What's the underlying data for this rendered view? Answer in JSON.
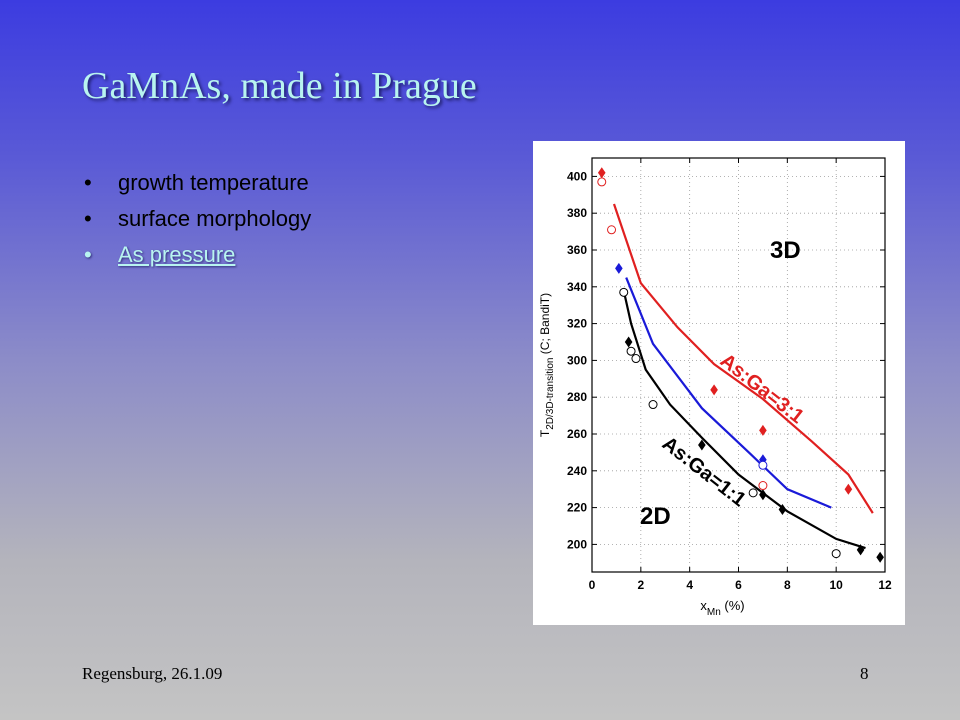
{
  "slide": {
    "title": "GaMnAs, made in Prague",
    "bullets": [
      "growth temperature",
      "surface morphology",
      "As pressure"
    ],
    "bullet_glyph": "•",
    "footer_left": "Regensburg, 26.1.09",
    "footer_right": "8",
    "colors": {
      "title": "#b8f4f0",
      "link": "#b8f4f0"
    }
  },
  "chart_data": {
    "type": "scatter",
    "xlim": [
      0,
      12
    ],
    "ylim": [
      185,
      410
    ],
    "xticks": [
      0,
      2,
      4,
      6,
      8,
      10,
      12
    ],
    "yticks": [
      200,
      220,
      240,
      260,
      280,
      300,
      320,
      340,
      360,
      380,
      400
    ],
    "grid": true,
    "xlabel": {
      "main": "x",
      "sub": "Mn",
      "unit": "(%)"
    },
    "ylabel": {
      "main": "T",
      "sub": "2D/3D-transition",
      "unit": "(C; BandiT)"
    },
    "annotations": [
      "3D",
      "2D",
      "As:Ga=3:1",
      "As:Ga=1:1"
    ],
    "series": [
      {
        "color": "#e02020",
        "marker": "diamond",
        "points": [
          [
            0.4,
            402
          ],
          [
            5.0,
            284
          ],
          [
            7.0,
            262
          ],
          [
            10.5,
            230
          ]
        ],
        "curve": [
          [
            0.9,
            385
          ],
          [
            2.0,
            342
          ],
          [
            3.5,
            318
          ],
          [
            5.0,
            298
          ],
          [
            7.0,
            279
          ],
          [
            9.0,
            256
          ],
          [
            10.5,
            238
          ],
          [
            11.5,
            217
          ]
        ]
      },
      {
        "color": "#1a1ad8",
        "marker": "diamond",
        "points": [
          [
            1.1,
            350
          ],
          [
            7.0,
            246
          ]
        ],
        "curve": [
          [
            1.4,
            345
          ],
          [
            2.5,
            309
          ],
          [
            4.5,
            274
          ],
          [
            6.5,
            249
          ],
          [
            8.0,
            230
          ],
          [
            9.8,
            220
          ]
        ]
      },
      {
        "color": "#000000",
        "marker": "diamond",
        "points": [
          [
            1.5,
            310
          ],
          [
            4.5,
            254
          ],
          [
            7.0,
            227
          ],
          [
            7.8,
            219
          ],
          [
            11.0,
            197
          ],
          [
            11.8,
            193
          ]
        ],
        "curve": [
          [
            1.3,
            338
          ],
          [
            1.6,
            320
          ],
          [
            2.2,
            295
          ],
          [
            3.2,
            276
          ],
          [
            4.5,
            258
          ],
          [
            6.0,
            238
          ],
          [
            8.0,
            218
          ],
          [
            10.0,
            203
          ],
          [
            11.2,
            198
          ]
        ]
      },
      {
        "color": "#e02020",
        "marker": "circle",
        "points": [
          [
            0.4,
            397
          ],
          [
            0.8,
            371
          ],
          [
            7.0,
            232
          ]
        ]
      },
      {
        "color": "#1a1ad8",
        "marker": "circle",
        "points": [
          [
            7.0,
            243
          ]
        ]
      },
      {
        "color": "#000000",
        "marker": "circle",
        "points": [
          [
            1.3,
            337
          ],
          [
            1.6,
            305
          ],
          [
            1.8,
            301
          ],
          [
            2.5,
            276
          ],
          [
            6.6,
            228
          ],
          [
            10.0,
            195
          ]
        ]
      }
    ]
  }
}
